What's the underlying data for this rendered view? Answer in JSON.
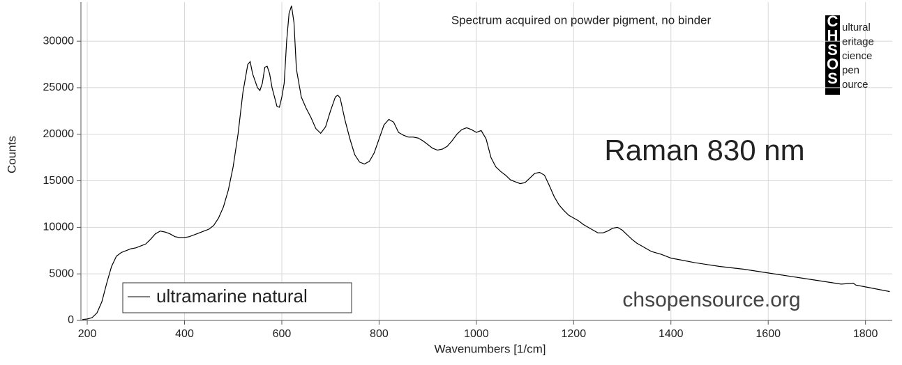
{
  "chart_data": {
    "type": "line",
    "xlabel": "Wavenumbers [1/cm]",
    "ylabel": "Counts",
    "annotations": [
      "Spectrum acquired on powder pigment, no binder",
      "Raman 830 nm",
      "chsopensource.org"
    ],
    "logo": {
      "letters": [
        "C",
        "H",
        "S",
        "O",
        "S"
      ],
      "words": [
        "ultural",
        "eritage",
        "cience",
        "pen",
        "ource"
      ]
    },
    "xlim": [
      187,
      1855
    ],
    "ylim": [
      0,
      34200
    ],
    "xticks": [
      200,
      400,
      600,
      800,
      1000,
      1200,
      1400,
      1600,
      1800
    ],
    "yticks": [
      0,
      5000,
      10000,
      15000,
      20000,
      25000,
      30000
    ],
    "grid": true,
    "legend": "bottom-left",
    "x": [
      190,
      200,
      210,
      220,
      230,
      240,
      250,
      260,
      270,
      280,
      290,
      300,
      310,
      320,
      330,
      340,
      350,
      360,
      370,
      380,
      390,
      400,
      410,
      420,
      430,
      440,
      450,
      460,
      470,
      480,
      490,
      500,
      510,
      520,
      530,
      535,
      540,
      550,
      555,
      560,
      565,
      570,
      575,
      580,
      590,
      595,
      600,
      605,
      610,
      615,
      620,
      625,
      630,
      640,
      650,
      660,
      670,
      680,
      690,
      700,
      710,
      715,
      720,
      730,
      740,
      750,
      760,
      770,
      780,
      790,
      800,
      810,
      820,
      830,
      840,
      850,
      860,
      870,
      880,
      890,
      900,
      910,
      920,
      930,
      940,
      950,
      960,
      970,
      980,
      990,
      1000,
      1010,
      1020,
      1030,
      1040,
      1050,
      1060,
      1070,
      1080,
      1090,
      1100,
      1110,
      1120,
      1130,
      1140,
      1150,
      1160,
      1170,
      1180,
      1190,
      1200,
      1210,
      1220,
      1230,
      1240,
      1250,
      1260,
      1270,
      1280,
      1290,
      1300,
      1310,
      1320,
      1330,
      1340,
      1350,
      1360,
      1380,
      1400,
      1450,
      1500,
      1550,
      1600,
      1650,
      1700,
      1750,
      1775,
      1780,
      1800,
      1850
    ],
    "series": [
      {
        "name": "ultramarine natural",
        "color": "#000000",
        "values": [
          100,
          150,
          300,
          800,
          2000,
          4000,
          5800,
          6900,
          7300,
          7500,
          7700,
          7800,
          8000,
          8200,
          8700,
          9300,
          9600,
          9500,
          9300,
          9000,
          8900,
          8900,
          9000,
          9200,
          9400,
          9600,
          9800,
          10200,
          11000,
          12200,
          14000,
          16500,
          20000,
          24500,
          27500,
          27800,
          26500,
          25000,
          24700,
          25500,
          27200,
          27300,
          26500,
          25000,
          23000,
          22900,
          24000,
          25500,
          30000,
          33000,
          33800,
          32000,
          27000,
          24000,
          22800,
          21800,
          20600,
          20100,
          20800,
          22500,
          24000,
          24200,
          23900,
          21500,
          19500,
          17800,
          17000,
          16800,
          17100,
          18000,
          19500,
          21000,
          21600,
          21300,
          20200,
          19900,
          19700,
          19700,
          19600,
          19300,
          18900,
          18500,
          18300,
          18400,
          18700,
          19300,
          20000,
          20500,
          20700,
          20500,
          20200,
          20400,
          19500,
          17500,
          16500,
          16000,
          15600,
          15100,
          14900,
          14700,
          14800,
          15300,
          15800,
          15900,
          15600,
          14500,
          13300,
          12400,
          11800,
          11300,
          11000,
          10700,
          10300,
          10000,
          9700,
          9400,
          9400,
          9600,
          9900,
          10000,
          9700,
          9200,
          8700,
          8300,
          8000,
          7700,
          7400,
          7100,
          6700,
          6200,
          5800,
          5500,
          5100,
          4700,
          4300,
          3900,
          4000,
          3800,
          3600,
          3100
        ]
      }
    ]
  }
}
